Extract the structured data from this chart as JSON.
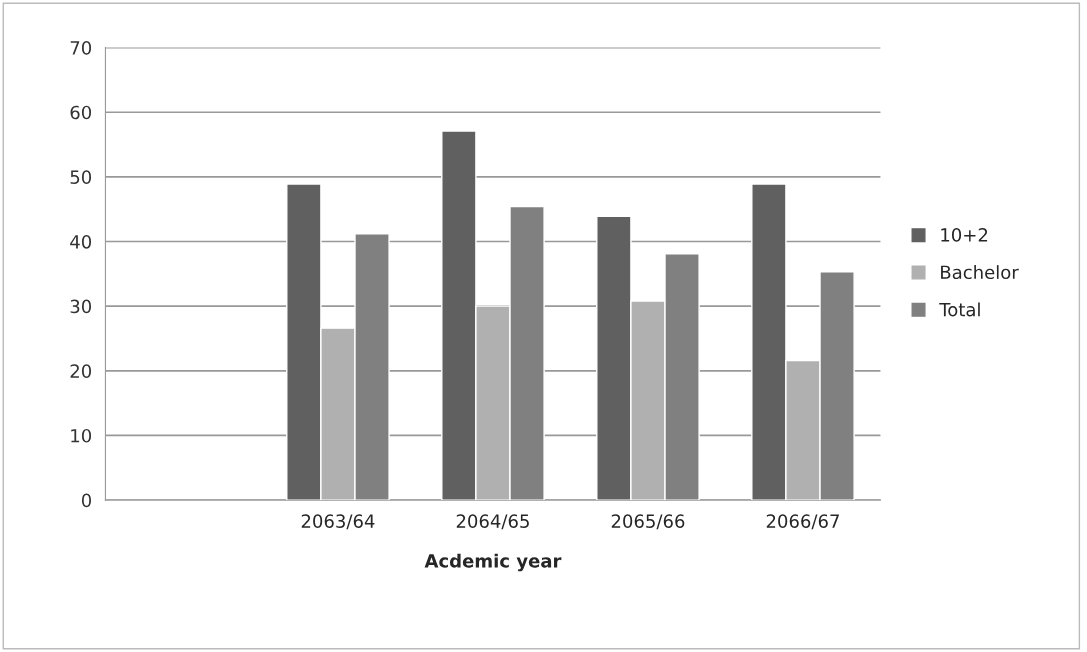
{
  "chart_data": {
    "type": "bar",
    "xlabel": "Acdemic year",
    "categories": [
      null,
      "2063/64",
      "2064/65",
      "2065/66",
      "2066/67"
    ],
    "series": [
      {
        "name": "10+2",
        "color": "#606060",
        "values": [
          null,
          48.9,
          57.1,
          43.9,
          48.9
        ]
      },
      {
        "name": "Bachelor",
        "color": "#b0b0b0",
        "values": [
          null,
          26.6,
          30.0,
          30.8,
          21.6
        ]
      },
      {
        "name": "Total",
        "color": "#808080",
        "values": [
          null,
          41.2,
          45.4,
          38.1,
          35.3
        ]
      }
    ],
    "ylim": [
      0,
      70
    ],
    "yticks": [
      0,
      10,
      20,
      30,
      40,
      50,
      60,
      70
    ],
    "grid": "y",
    "legend": "right"
  }
}
